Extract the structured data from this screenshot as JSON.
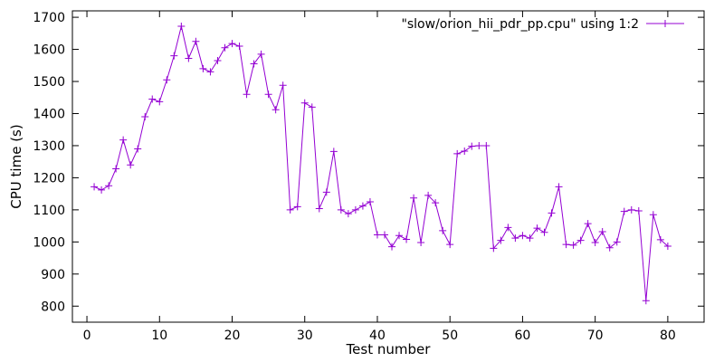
{
  "chart_data": {
    "type": "line",
    "title": "",
    "xlabel": "Test number",
    "ylabel": "CPU time (s)",
    "xlim": [
      -2,
      85
    ],
    "ylim": [
      750,
      1720
    ],
    "xticks": [
      0,
      10,
      20,
      30,
      40,
      50,
      60,
      70,
      80
    ],
    "yticks": [
      800,
      900,
      1000,
      1100,
      1200,
      1300,
      1400,
      1500,
      1600,
      1700
    ],
    "grid": false,
    "legend_position": "top-right",
    "series_color": "#9400d3",
    "series": [
      {
        "name": "\"slow/orion_hii_pdr_pp.cpu\" using 1:2",
        "x": [
          1,
          2,
          3,
          4,
          5,
          6,
          7,
          8,
          9,
          10,
          11,
          12,
          13,
          14,
          15,
          16,
          17,
          18,
          19,
          20,
          21,
          22,
          23,
          24,
          25,
          26,
          27,
          28,
          29,
          30,
          31,
          32,
          33,
          34,
          35,
          36,
          37,
          38,
          39,
          40,
          41,
          42,
          43,
          44,
          45,
          46,
          47,
          48,
          49,
          50,
          51,
          52,
          53,
          54,
          55,
          56,
          57,
          58,
          59,
          60,
          61,
          62,
          63,
          64,
          65,
          66,
          67,
          68,
          69,
          70,
          71,
          72,
          73,
          74,
          75,
          76,
          77,
          78,
          79,
          80
        ],
        "y": [
          1172,
          1162,
          1175,
          1228,
          1318,
          1240,
          1290,
          1390,
          1445,
          1437,
          1505,
          1580,
          1672,
          1572,
          1625,
          1540,
          1530,
          1565,
          1605,
          1618,
          1610,
          1460,
          1555,
          1585,
          1460,
          1412,
          1488,
          1100,
          1110,
          1433,
          1420,
          1104,
          1155,
          1282,
          1100,
          1088,
          1100,
          1112,
          1125,
          1022,
          1022,
          985,
          1020,
          1008,
          1137,
          998,
          1145,
          1122,
          1035,
          992,
          1275,
          1283,
          1298,
          1300,
          1300,
          980,
          1005,
          1045,
          1012,
          1020,
          1012,
          1043,
          1030,
          1090,
          1172,
          992,
          990,
          1005,
          1057,
          998,
          1032,
          982,
          1000,
          1095,
          1100,
          1097,
          817,
          1085,
          1007,
          987
        ]
      }
    ]
  }
}
